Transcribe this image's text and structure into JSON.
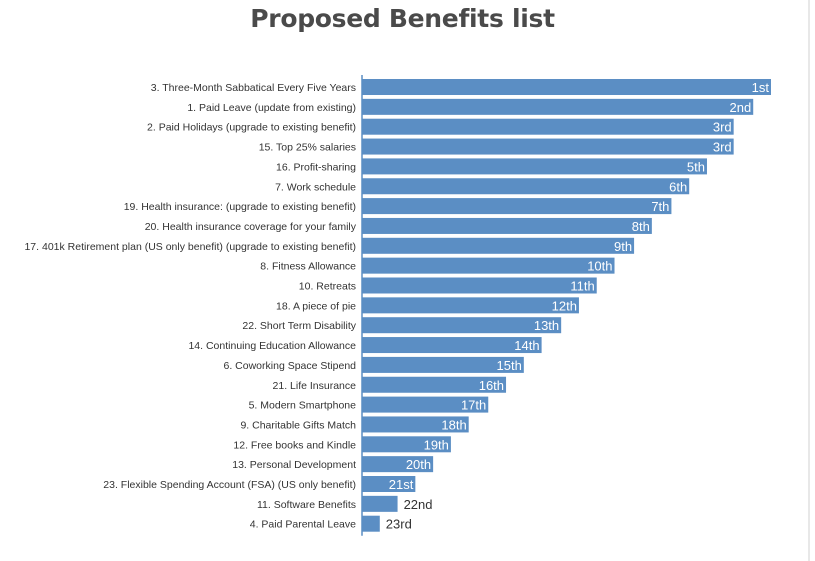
{
  "page": {
    "title": "Proposed Benefits list"
  },
  "colors": {
    "bar": "#5b8ec4",
    "axis": "#5b8ec4",
    "label_inside": "#ffffff",
    "label_outside": "#333333"
  },
  "chart_data": {
    "type": "bar",
    "orientation": "horizontal",
    "title": "Proposed Benefits list",
    "xlabel": "",
    "ylabel": "",
    "grid": false,
    "legend": "none",
    "xlim": [
      0,
      23
    ],
    "categories": [
      "3. Three-Month Sabbatical Every Five Years",
      "1. Paid Leave (update from existing)",
      "2. Paid Holidays (upgrade to existing benefit)",
      "15. Top 25% salaries",
      "16. Profit-sharing",
      "7. Work schedule",
      "19. Health insurance: (upgrade to existing benefit)",
      "20. Health insurance coverage for your family",
      "17. 401k Retirement plan (US only benefit) (upgrade to existing benefit)",
      "8. Fitness Allowance",
      "10. Retreats",
      "18. A piece of pie",
      "22. Short Term Disability",
      "14. Continuing Education Allowance",
      "6. Coworking Space Stipend",
      "21. Life Insurance",
      "5. Modern Smartphone",
      "9. Charitable Gifts Match",
      "12. Free books and Kindle",
      "13. Personal Development",
      "23. Flexible Spending Account (FSA) (US only benefit)",
      "11. Software Benefits",
      "4. Paid Parental Leave"
    ],
    "values": [
      23,
      22,
      20.9,
      20.9,
      19.4,
      18.4,
      17.4,
      16.3,
      15.3,
      14.2,
      13.2,
      12.2,
      11.2,
      10.1,
      9.1,
      8.1,
      7.1,
      6.0,
      5.0,
      4.0,
      3.0,
      2.0,
      1.0
    ],
    "value_labels": [
      "1st",
      "2nd",
      "3rd",
      "3rd",
      "5th",
      "6th",
      "7th",
      "8th",
      "9th",
      "10th",
      "11th",
      "12th",
      "13th",
      "14th",
      "15th",
      "16th",
      "17th",
      "18th",
      "19th",
      "20th",
      "21st",
      "22nd",
      "23rd"
    ]
  }
}
